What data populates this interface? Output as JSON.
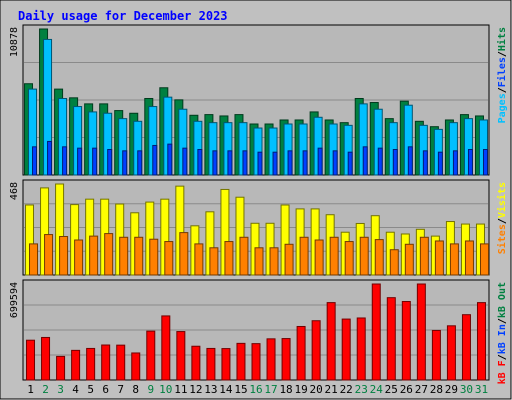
{
  "chart_data": {
    "type": "bar",
    "title": "Daily usage for December 2023",
    "colors": {
      "hits": "#008040",
      "files": "#00c0ff",
      "pages": "#00e0ff",
      "visits": "#ffff00",
      "sites": "#ff8000",
      "kbytes": "#ff0000",
      "kb_in": "#0040ff",
      "kb_out": "#008040",
      "frame": "#c0c0c0",
      "plot": "#b8b8b8",
      "title": "#0000ff"
    },
    "categories": [
      "1",
      "2",
      "3",
      "4",
      "5",
      "6",
      "7",
      "8",
      "9",
      "10",
      "11",
      "12",
      "13",
      "14",
      "15",
      "16",
      "17",
      "18",
      "19",
      "20",
      "21",
      "22",
      "23",
      "24",
      "25",
      "26",
      "27",
      "28",
      "29",
      "30",
      "31"
    ],
    "weekend_days": [
      "2",
      "3",
      "9",
      "10",
      "16",
      "17",
      "23",
      "24",
      "30",
      "31"
    ],
    "panels": [
      {
        "id": "hits-files-pages",
        "max_label": "10878",
        "ylim": [
          0,
          10878
        ],
        "legend": [
          {
            "text": "Pages",
            "color": "#00c0ff"
          },
          {
            "text": "/",
            "color": "#000000"
          },
          {
            "text": "Files",
            "color": "#0040ff"
          },
          {
            "text": "/",
            "color": "#000000"
          },
          {
            "text": "Hits",
            "color": "#008040"
          }
        ],
        "series": [
          {
            "name": "Hits",
            "color": "#008040",
            "values": [
              6800,
              10878,
              6400,
              5750,
              5300,
              5300,
              4800,
              4600,
              5700,
              6500,
              5600,
              4450,
              4500,
              4400,
              4500,
              3800,
              3800,
              4100,
              4100,
              4700,
              4100,
              3900,
              5700,
              5400,
              4200,
              5500,
              4000,
              3600,
              4100,
              4500,
              4400
            ]
          },
          {
            "name": "Files",
            "color": "#00c0ff",
            "values": [
              6400,
              10100,
              5700,
              5100,
              4700,
              4600,
              4200,
              4000,
              5100,
              5800,
              4900,
              4000,
              3900,
              3900,
              3900,
              3500,
              3500,
              3800,
              3800,
              4300,
              3800,
              3700,
              5300,
              4900,
              3900,
              5200,
              3700,
              3400,
              3900,
              4200,
              4100
            ]
          },
          {
            "name": "Pages",
            "color": "#0040ff",
            "values": [
              2100,
              2500,
              2100,
              2000,
              2000,
              1900,
              1800,
              1800,
              2200,
              2300,
              2000,
              1900,
              1800,
              1800,
              1800,
              1700,
              1700,
              1800,
              1800,
              2000,
              1800,
              1700,
              2100,
              2000,
              1900,
              2100,
              1800,
              1700,
              1800,
              1900,
              1900
            ]
          }
        ]
      },
      {
        "id": "visits-sites",
        "max_label": "468",
        "ylim": [
          0,
          468
        ],
        "legend": [
          {
            "text": "Sites",
            "color": "#ff8000"
          },
          {
            "text": "/",
            "color": "#000000"
          },
          {
            "text": "Visits",
            "color": "#ffff00"
          }
        ],
        "series": [
          {
            "name": "Visits",
            "color": "#ffff00",
            "values": [
              360,
              448,
              468,
              362,
              390,
              390,
              365,
              320,
              375,
              390,
              457,
              253,
              325,
              440,
              400,
              266,
              266,
              360,
              340,
              340,
              310,
              220,
              265,
              305,
              220,
              211,
              235,
              200,
              275,
              262,
              262
            ]
          },
          {
            "name": "Sites",
            "color": "#ff8000",
            "values": [
              160,
              208,
              198,
              180,
              200,
              213,
              194,
              194,
              184,
              172,
              218,
              160,
              140,
              172,
              194,
              140,
              140,
              158,
              194,
              180,
              194,
              172,
              194,
              182,
              130,
              158,
              194,
              175,
              160,
              175,
              160
            ]
          }
        ]
      },
      {
        "id": "kbytes",
        "max_label": "699594",
        "ylim": [
          0,
          699594
        ],
        "legend": [
          {
            "text": "kB F",
            "color": "#ff0000"
          },
          {
            "text": "/",
            "color": "#000000"
          },
          {
            "text": "kB In",
            "color": "#0040ff"
          },
          {
            "text": "/",
            "color": "#000000"
          },
          {
            "text": "kB Out",
            "color": "#008040"
          }
        ],
        "series": [
          {
            "name": "kB F",
            "color": "#ff0000",
            "values": [
              290000,
              310000,
              172000,
              216000,
              230000,
              255000,
              254000,
              197000,
              356000,
              467000,
              353000,
              246000,
              230000,
              229000,
              267000,
              265000,
              300000,
              302000,
              390000,
              432000,
              564000,
              444000,
              452000,
              699594,
              600000,
              572000,
              699594,
              361000,
              395000,
              476000,
              564000
            ]
          }
        ]
      }
    ]
  }
}
